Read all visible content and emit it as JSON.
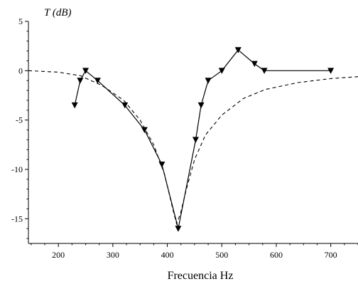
{
  "chart_data": {
    "type": "line",
    "xlabel": "Frecuencia  Hz",
    "ylabel": "T  (dB)",
    "xlim": [
      145,
      750
    ],
    "ylim": [
      -17.5,
      5
    ],
    "x_ticks": [
      200,
      300,
      400,
      500,
      600,
      700
    ],
    "y_ticks": [
      5,
      0,
      -5,
      -10,
      -15
    ],
    "grid": false,
    "series": [
      {
        "style": "solid-with-triangle-markers",
        "color": "#000000",
        "points": [
          [
            230,
            -3.5
          ],
          [
            240,
            -1.0
          ],
          [
            250,
            0.0
          ],
          [
            272,
            -1.0
          ],
          [
            322,
            -3.5
          ],
          [
            358,
            -6.0
          ],
          [
            390,
            -9.5
          ],
          [
            420,
            -16.0
          ],
          [
            452,
            -7.0
          ],
          [
            462,
            -3.5
          ],
          [
            475,
            -1.0
          ],
          [
            500,
            0.0
          ],
          [
            530,
            2.1
          ],
          [
            560,
            0.7
          ],
          [
            578,
            0.0
          ],
          [
            700,
            0.0
          ]
        ]
      },
      {
        "style": "dashed",
        "color": "#000000",
        "points": [
          [
            145,
            0.0
          ],
          [
            200,
            -0.15
          ],
          [
            240,
            -0.5
          ],
          [
            280,
            -1.5
          ],
          [
            320,
            -3.0
          ],
          [
            350,
            -5.0
          ],
          [
            375,
            -7.5
          ],
          [
            395,
            -10.5
          ],
          [
            410,
            -14.0
          ],
          [
            417,
            -15.5
          ],
          [
            424,
            -14.5
          ],
          [
            435,
            -12.0
          ],
          [
            450,
            -9.0
          ],
          [
            470,
            -6.5
          ],
          [
            500,
            -4.5
          ],
          [
            540,
            -2.8
          ],
          [
            580,
            -1.9
          ],
          [
            640,
            -1.2
          ],
          [
            700,
            -0.8
          ],
          [
            750,
            -0.6
          ]
        ]
      }
    ]
  }
}
